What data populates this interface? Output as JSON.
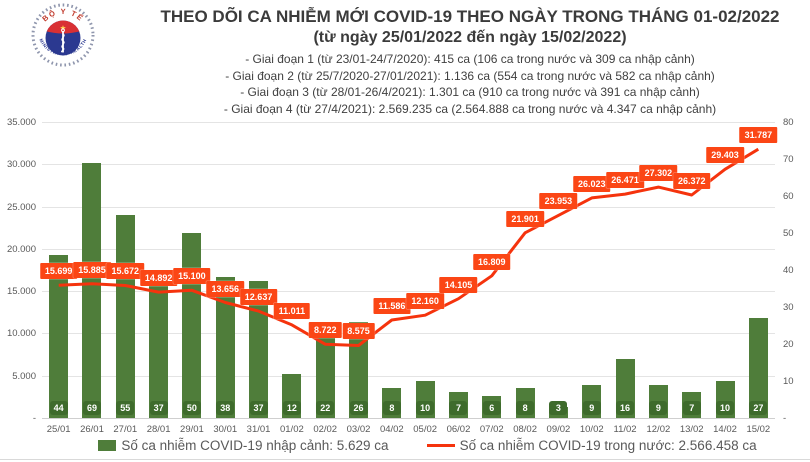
{
  "logo": {
    "top_text": "BỘ Y TẾ",
    "bottom_text": "MINISTRY OF HEALTH"
  },
  "header": {
    "title": "THEO DÕI CA NHIỄM MỚI COVID-19 THEO NGÀY TRONG THÁNG 01-02/2022",
    "subtitle": "(từ ngày 25/01/2022 đến ngày 15/02/2022)",
    "stages": [
      "- Giai đoạn 1 (từ 23/01-24/7/2020): 415 ca (106 ca trong nước và 309 ca nhập cảnh)",
      "- Giai đoạn 2 (từ 25/7/2020-27/01/2021): 1.136 ca (554 ca trong nước và 582 ca nhập cảnh)",
      "- Giai đoạn 3 (từ 28/01-26/4/2021): 1.301 ca (910 ca trong nước và 391 ca nhập cảnh)",
      "- Giai đoạn 4 (từ 27/4/2021): 2.569.235 ca (2.564.888 ca trong nước và 4.347 ca nhập cảnh)"
    ]
  },
  "chart_data": {
    "type": "combo-bar-line",
    "categories": [
      "25/01",
      "26/01",
      "27/01",
      "28/01",
      "29/01",
      "30/01",
      "31/01",
      "01/02",
      "02/02",
      "03/02",
      "04/02",
      "05/02",
      "06/02",
      "07/02",
      "08/02",
      "09/02",
      "10/02",
      "11/02",
      "12/02",
      "13/02",
      "14/02",
      "15/02"
    ],
    "series": [
      {
        "name": "Số ca nhiễm COVID-19 nhập cảnh",
        "type": "bar",
        "axis": "right",
        "values": [
          44,
          69,
          55,
          37,
          50,
          38,
          37,
          12,
          22,
          26,
          8,
          10,
          7,
          6,
          8,
          3,
          9,
          16,
          9,
          7,
          10,
          27
        ],
        "labels": [
          "44",
          "69",
          "55",
          "37",
          "50",
          "38",
          "37",
          "12",
          "22",
          "26",
          "8",
          "10",
          "7",
          "6",
          "8",
          "3",
          "9",
          "16",
          "9",
          "7",
          "10",
          "27"
        ]
      },
      {
        "name": "Số ca nhiễm COVID-19 trong nước",
        "type": "line",
        "axis": "left",
        "values": [
          15699,
          15885,
          15672,
          14892,
          15100,
          13656,
          12637,
          11011,
          8722,
          8575,
          11586,
          12160,
          14105,
          16809,
          21901,
          23953,
          26023,
          26471,
          27302,
          26372,
          29403,
          31787
        ],
        "labels": [
          "15.699",
          "15.885",
          "15.672",
          "14.892",
          "15.100",
          "13.656",
          "12.637",
          "11.011",
          "8.722",
          "8.575",
          "11.586",
          "12.160",
          "14.105",
          "16.809",
          "21.901",
          "23.953",
          "26.023",
          "26.471",
          "27.302",
          "26.372",
          "29.403",
          "31.787"
        ]
      }
    ],
    "left_axis": {
      "min": 0,
      "max": 35000,
      "ticks": [
        {
          "label": "35.000",
          "v": 35000
        },
        {
          "label": "30.000",
          "v": 30000
        },
        {
          "label": "25.000",
          "v": 25000
        },
        {
          "label": "20.000",
          "v": 20000
        },
        {
          "label": "15.000",
          "v": 15000
        },
        {
          "label": "10.000",
          "v": 10000
        },
        {
          "label": "5.000",
          "v": 5000
        },
        {
          "label": "-",
          "v": 0
        }
      ]
    },
    "right_axis": {
      "min": 0,
      "max": 80,
      "ticks": [
        {
          "label": "80",
          "v": 80
        },
        {
          "label": "70",
          "v": 70
        },
        {
          "label": "60",
          "v": 60
        },
        {
          "label": "50",
          "v": 50
        },
        {
          "label": "40",
          "v": 40
        },
        {
          "label": "30",
          "v": 30
        },
        {
          "label": "20",
          "v": 20
        },
        {
          "label": "10",
          "v": 10
        },
        {
          "label": "-",
          "v": 0
        }
      ]
    },
    "grid": true,
    "legend_position": "bottom"
  },
  "legend": [
    {
      "label": "Số ca nhiễm COVID-19 nhập cảnh: 5.629 ca",
      "marker": "bar-swatch",
      "color": "#4f7d3a"
    },
    {
      "label": "Số ca nhiễm COVID-19 trong nước: 2.566.458 ca",
      "marker": "line-swatch",
      "color": "#f5330d"
    }
  ],
  "colors": {
    "bar": "#4f7d3a",
    "bar_label_bg": "#3e6b2c",
    "line": "#f5330d",
    "line_label_bg": "#fb4615",
    "grid": "#e4e4e4",
    "axis_text": "#595959",
    "header_text": "#3b3b3b"
  }
}
